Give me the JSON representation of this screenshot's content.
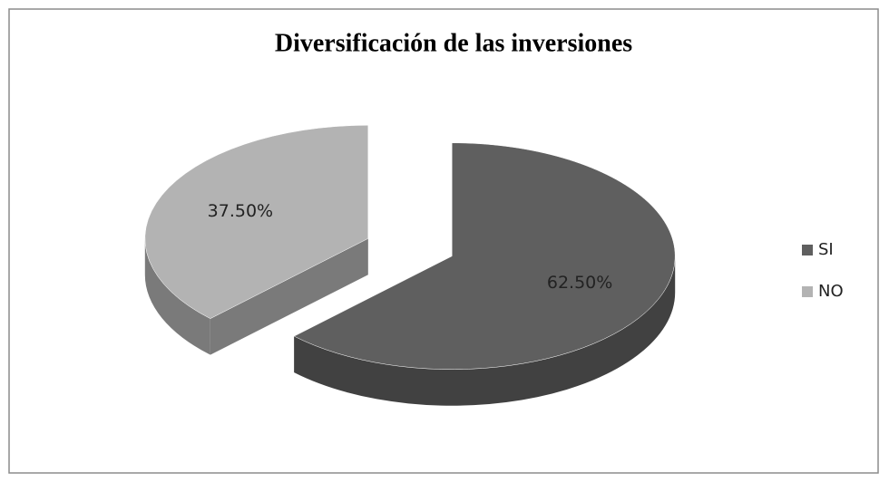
{
  "chart_data": {
    "type": "pie",
    "title": "Diversificación de las inversiones",
    "categories": [
      "SI",
      "NO"
    ],
    "values": [
      62.5,
      37.5
    ],
    "value_labels": [
      "62.50%",
      "37.50%"
    ],
    "colors": [
      "#5f5f5f",
      "#b3b3b3"
    ],
    "legend": "right"
  }
}
